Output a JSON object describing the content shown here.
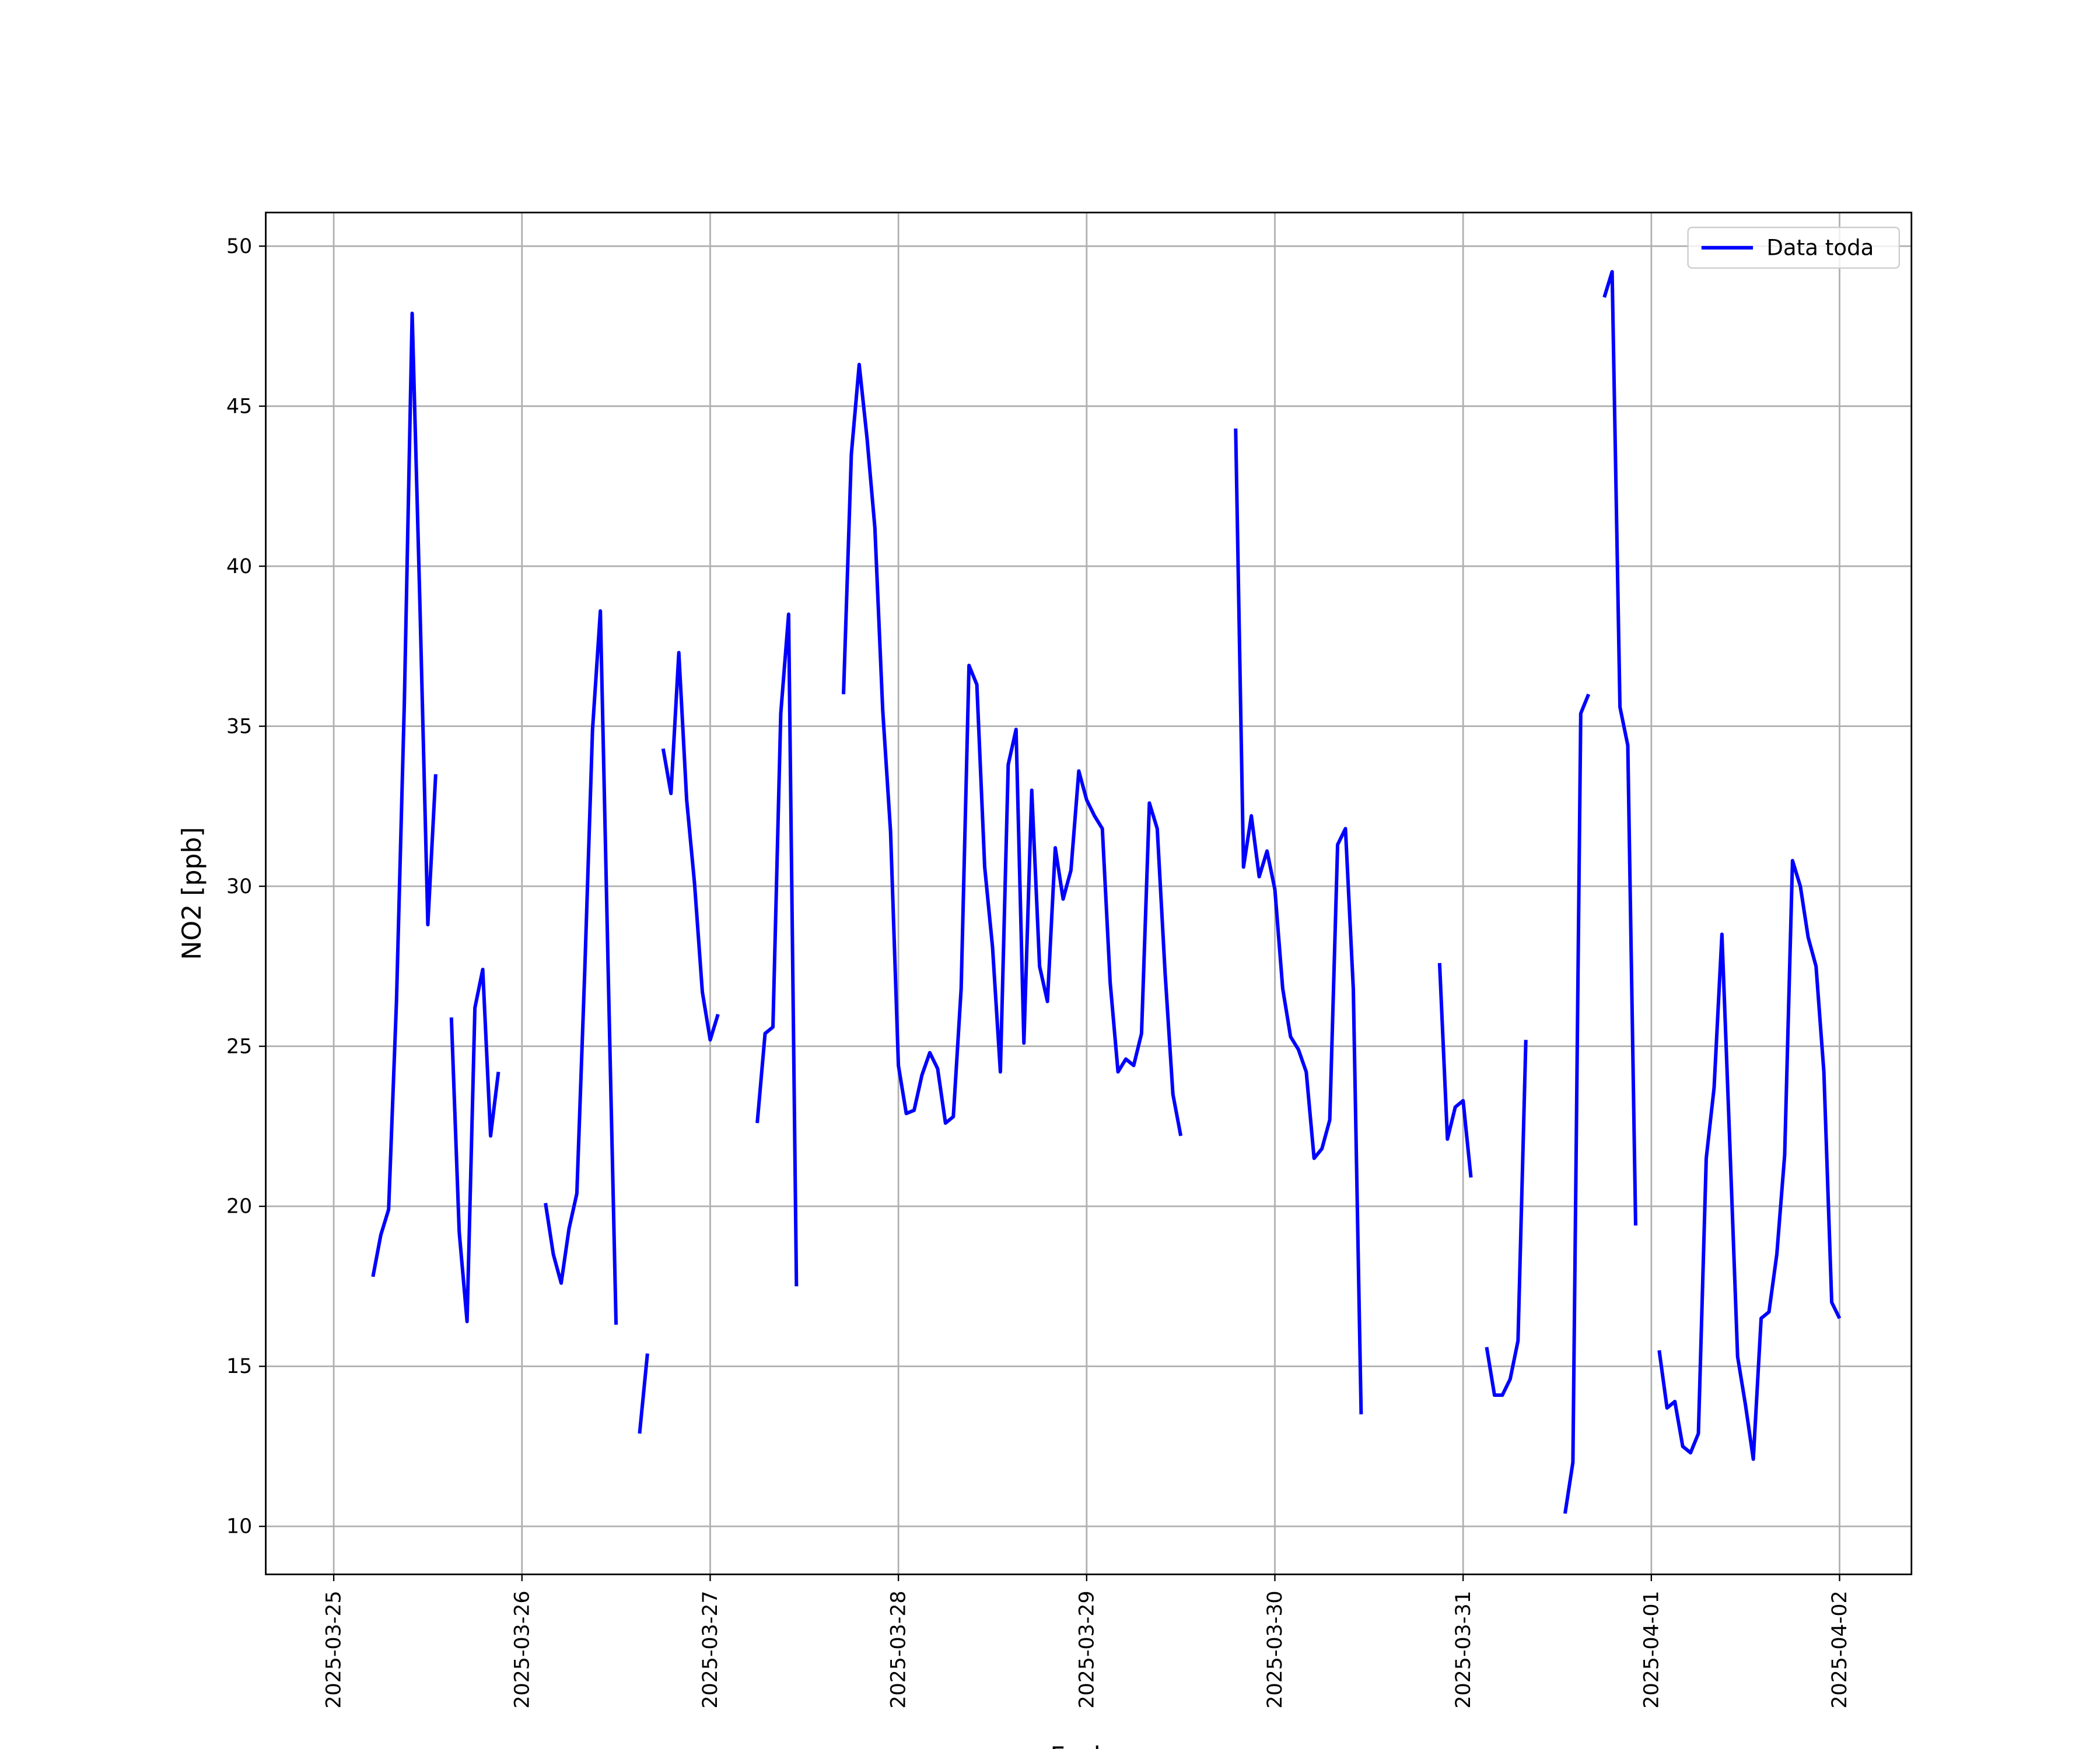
{
  "chart_data": {
    "type": "line",
    "x_label": "Fecha",
    "y_label": "NO2 [ppb]",
    "x": [
      "2025-03-25 05:00",
      "2025-03-25 06:00",
      "2025-03-25 07:00",
      "2025-03-25 08:00",
      "2025-03-25 09:00",
      "2025-03-25 10:00",
      "2025-03-25 11:00",
      "2025-03-25 12:00",
      "2025-03-25 13:00",
      "2025-03-25 14:00",
      "2025-03-25 15:00",
      "2025-03-25 16:00",
      "2025-03-25 17:00",
      "2025-03-25 18:00",
      "2025-03-25 19:00",
      "2025-03-25 20:00",
      "2025-03-25 21:00",
      "2025-03-25 22:00",
      "2025-03-26 03:00",
      "2025-03-26 04:00",
      "2025-03-26 05:00",
      "2025-03-26 06:00",
      "2025-03-26 07:00",
      "2025-03-26 08:00",
      "2025-03-26 09:00",
      "2025-03-26 10:00",
      "2025-03-26 11:00",
      "2025-03-26 12:00",
      "2025-03-26 13:00",
      "2025-03-26 15:00",
      "2025-03-26 16:00",
      "2025-03-26 17:00",
      "2025-03-26 18:00",
      "2025-03-26 19:00",
      "2025-03-26 20:00",
      "2025-03-26 21:00",
      "2025-03-26 22:00",
      "2025-03-26 23:00",
      "2025-03-27 00:00",
      "2025-03-27 01:00",
      "2025-03-27 02:00",
      "2025-03-27 06:00",
      "2025-03-27 07:00",
      "2025-03-27 08:00",
      "2025-03-27 09:00",
      "2025-03-27 10:00",
      "2025-03-27 11:00",
      "2025-03-27 12:00",
      "2025-03-27 17:00",
      "2025-03-27 18:00",
      "2025-03-27 19:00",
      "2025-03-27 20:00",
      "2025-03-27 21:00",
      "2025-03-27 22:00",
      "2025-03-27 23:00",
      "2025-03-28 00:00",
      "2025-03-28 01:00",
      "2025-03-28 02:00",
      "2025-03-28 03:00",
      "2025-03-28 04:00",
      "2025-03-28 05:00",
      "2025-03-28 06:00",
      "2025-03-28 07:00",
      "2025-03-28 08:00",
      "2025-03-28 09:00",
      "2025-03-28 10:00",
      "2025-03-28 11:00",
      "2025-03-28 12:00",
      "2025-03-28 13:00",
      "2025-03-28 14:00",
      "2025-03-28 15:00",
      "2025-03-28 16:00",
      "2025-03-28 17:00",
      "2025-03-28 18:00",
      "2025-03-28 19:00",
      "2025-03-28 20:00",
      "2025-03-28 21:00",
      "2025-03-28 22:00",
      "2025-03-28 23:00",
      "2025-03-29 00:00",
      "2025-03-29 01:00",
      "2025-03-29 02:00",
      "2025-03-29 03:00",
      "2025-03-29 04:00",
      "2025-03-29 05:00",
      "2025-03-29 06:00",
      "2025-03-29 07:00",
      "2025-03-29 08:00",
      "2025-03-29 09:00",
      "2025-03-29 10:00",
      "2025-03-29 11:00",
      "2025-03-29 12:00",
      "2025-03-29 13:00",
      "2025-03-29 19:00",
      "2025-03-29 20:00",
      "2025-03-29 21:00",
      "2025-03-29 22:00",
      "2025-03-29 23:00",
      "2025-03-30 00:00",
      "2025-03-30 01:00",
      "2025-03-30 02:00",
      "2025-03-30 03:00",
      "2025-03-30 04:00",
      "2025-03-30 05:00",
      "2025-03-30 06:00",
      "2025-03-30 07:00",
      "2025-03-30 08:00",
      "2025-03-30 09:00",
      "2025-03-30 10:00",
      "2025-03-30 11:00",
      "2025-03-30 12:00",
      "2025-03-30 21:00",
      "2025-03-30 22:00",
      "2025-03-30 23:00",
      "2025-03-31 00:00",
      "2025-03-31 01:00",
      "2025-03-31 02:00",
      "2025-03-31 03:00",
      "2025-03-31 04:00",
      "2025-03-31 05:00",
      "2025-03-31 06:00",
      "2025-03-31 07:00",
      "2025-03-31 08:00",
      "2025-03-31 09:00",
      "2025-03-31 13:00",
      "2025-03-31 14:00",
      "2025-03-31 15:00",
      "2025-03-31 16:00",
      "2025-03-31 17:00",
      "2025-03-31 18:00",
      "2025-03-31 19:00",
      "2025-03-31 20:00",
      "2025-03-31 21:00",
      "2025-03-31 22:00",
      "2025-03-31 23:00",
      "2025-04-01 01:00",
      "2025-04-01 02:00",
      "2025-04-01 03:00",
      "2025-04-01 04:00",
      "2025-04-01 05:00",
      "2025-04-01 06:00",
      "2025-04-01 07:00",
      "2025-04-01 08:00",
      "2025-04-01 09:00",
      "2025-04-01 10:00",
      "2025-04-01 11:00",
      "2025-04-01 12:00",
      "2025-04-01 13:00",
      "2025-04-01 14:00",
      "2025-04-01 15:00",
      "2025-04-01 16:00",
      "2025-04-01 17:00",
      "2025-04-01 18:00",
      "2025-04-01 19:00",
      "2025-04-01 20:00",
      "2025-04-01 21:00",
      "2025-04-01 22:00",
      "2025-04-01 23:00",
      "2025-04-02 00:00"
    ],
    "series": [
      {
        "name": "Data toda",
        "color": "#0000ff",
        "values": [
          17.8,
          19.1,
          19.9,
          26.4,
          35.7,
          47.9,
          38.7,
          28.8,
          33.5,
          null,
          25.9,
          19.2,
          16.4,
          26.2,
          27.4,
          22.2,
          24.2,
          null,
          20.1,
          18.5,
          17.6,
          19.3,
          20.4,
          27.3,
          34.9,
          38.6,
          27.3,
          16.3,
          null,
          12.9,
          15.4,
          null,
          34.3,
          32.9,
          37.3,
          32.7,
          30.1,
          26.7,
          25.2,
          26.0,
          null,
          22.6,
          25.4,
          25.6,
          35.4,
          38.5,
          17.5,
          null,
          36.0,
          43.5,
          46.3,
          44.0,
          41.2,
          35.5,
          31.7,
          24.4,
          22.9,
          23.0,
          24.1,
          24.8,
          24.3,
          22.6,
          22.8,
          26.8,
          36.9,
          36.3,
          30.6,
          28.1,
          24.2,
          33.8,
          34.9,
          25.1,
          33.0,
          27.5,
          26.4,
          31.2,
          29.6,
          30.5,
          33.6,
          32.7,
          32.2,
          31.8,
          27.0,
          24.2,
          24.6,
          24.4,
          25.4,
          32.6,
          31.8,
          27.3,
          23.5,
          22.2,
          null,
          44.3,
          30.6,
          32.2,
          30.3,
          31.1,
          29.9,
          26.8,
          25.3,
          24.9,
          24.2,
          21.5,
          21.8,
          22.7,
          31.3,
          31.8,
          26.8,
          13.5,
          null,
          27.6,
          22.1,
          23.1,
          23.3,
          20.9,
          null,
          15.6,
          14.1,
          14.1,
          14.6,
          15.8,
          25.2,
          null,
          10.4,
          12.0,
          35.4,
          36.0,
          null,
          48.4,
          49.2,
          35.6,
          34.4,
          19.4,
          null,
          15.5,
          13.7,
          13.9,
          12.5,
          12.3,
          12.9,
          21.5,
          23.7,
          28.5,
          22.0,
          15.3,
          13.8,
          12.1,
          16.5,
          16.7,
          18.5,
          21.6,
          30.8,
          30.0,
          28.4,
          27.5,
          24.2,
          17.0,
          16.5
        ]
      }
    ],
    "xlim": [
      "2025-03-24 15:20",
      "2025-04-02 09:10"
    ],
    "xticks": [
      "2025-03-25",
      "2025-03-26",
      "2025-03-27",
      "2025-03-28",
      "2025-03-29",
      "2025-03-30",
      "2025-03-31",
      "2025-04-01",
      "2025-04-02"
    ],
    "ylim": [
      8.5,
      51.05
    ],
    "yticks": [
      10,
      15,
      20,
      25,
      30,
      35,
      40,
      45,
      50
    ],
    "grid": true,
    "legend": "upper right"
  }
}
